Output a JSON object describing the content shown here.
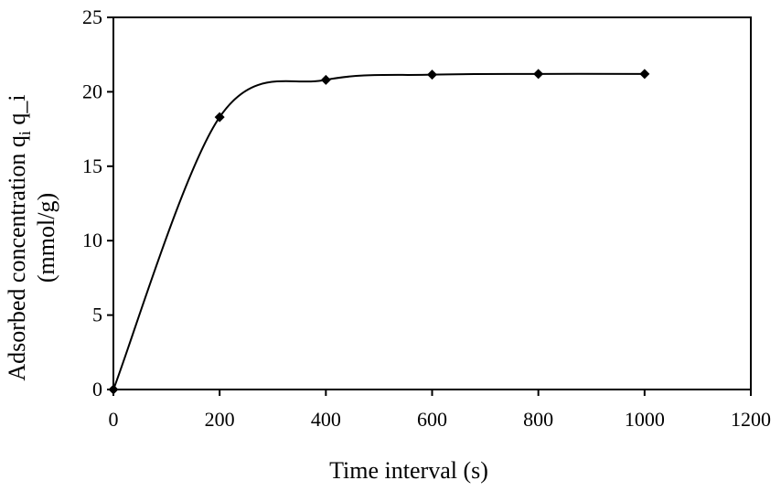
{
  "chart_data": {
    "type": "scatter",
    "smoothed_line": true,
    "xlabel": "Time interval (s)",
    "ylabel_line1": "Adsorbed concentration q",
    "ylabel_sub": "i",
    "ylabel_tail": " q_i",
    "ylabel_line2": "(mmol/g)",
    "xlim": [
      0,
      1200
    ],
    "ylim": [
      0,
      25
    ],
    "x_ticks": [
      0,
      200,
      400,
      600,
      800,
      1000,
      1200
    ],
    "y_ticks": [
      0,
      5,
      10,
      15,
      20,
      25
    ],
    "x_tick_labels": [
      "0",
      "200",
      "400",
      "600",
      "800",
      "1000",
      "1200"
    ],
    "y_tick_labels": [
      "0",
      "5",
      "10",
      "15",
      "20",
      "25"
    ],
    "grid": false,
    "series": [
      {
        "x": [
          0,
          200,
          400,
          600,
          800,
          1000
        ],
        "y": [
          0,
          18.3,
          20.8,
          21.15,
          21.2,
          21.2
        ],
        "color": "#000000",
        "marker": "diamond"
      }
    ]
  }
}
